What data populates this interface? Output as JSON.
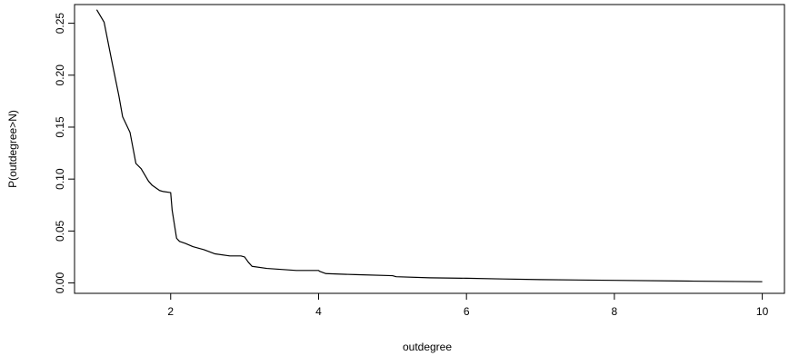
{
  "chart_data": {
    "type": "line",
    "title": "",
    "xlabel": "outdegree",
    "ylabel": "P(outdegree>N)",
    "xlim": [
      0.7,
      10.3
    ],
    "ylim": [
      -0.01,
      0.268
    ],
    "xticks": [
      2,
      4,
      6,
      8,
      10
    ],
    "xtick_labels": [
      "2",
      "4",
      "6",
      "8",
      "10"
    ],
    "yticks": [
      0.0,
      0.05,
      0.1,
      0.15,
      0.2,
      0.25
    ],
    "ytick_labels": [
      "0.00",
      "0.05",
      "0.10",
      "0.15",
      "0.20",
      "0.25"
    ],
    "grid": false,
    "legend": "none",
    "line_color": "#000000",
    "series": [
      {
        "x": [
          1.0,
          1.1,
          1.2,
          1.3,
          1.35,
          1.45,
          1.53,
          1.6,
          1.7,
          1.75,
          1.85,
          1.9,
          2.0,
          2.02,
          2.08,
          2.12,
          2.2,
          2.3,
          2.45,
          2.6,
          2.8,
          2.95,
          3.0,
          3.05,
          3.1,
          3.3,
          3.5,
          3.7,
          4.0,
          4.02,
          4.1,
          4.5,
          5.0,
          5.05,
          5.5,
          6.0,
          6.5,
          7.0,
          8.0,
          9.0,
          10.0
        ],
        "y": [
          0.263,
          0.251,
          0.215,
          0.18,
          0.16,
          0.145,
          0.115,
          0.11,
          0.098,
          0.094,
          0.089,
          0.088,
          0.087,
          0.07,
          0.043,
          0.04,
          0.038,
          0.035,
          0.032,
          0.028,
          0.026,
          0.026,
          0.025,
          0.02,
          0.016,
          0.014,
          0.013,
          0.012,
          0.012,
          0.011,
          0.009,
          0.008,
          0.007,
          0.006,
          0.005,
          0.0045,
          0.0038,
          0.0032,
          0.0025,
          0.0018,
          0.0012
        ]
      }
    ]
  }
}
